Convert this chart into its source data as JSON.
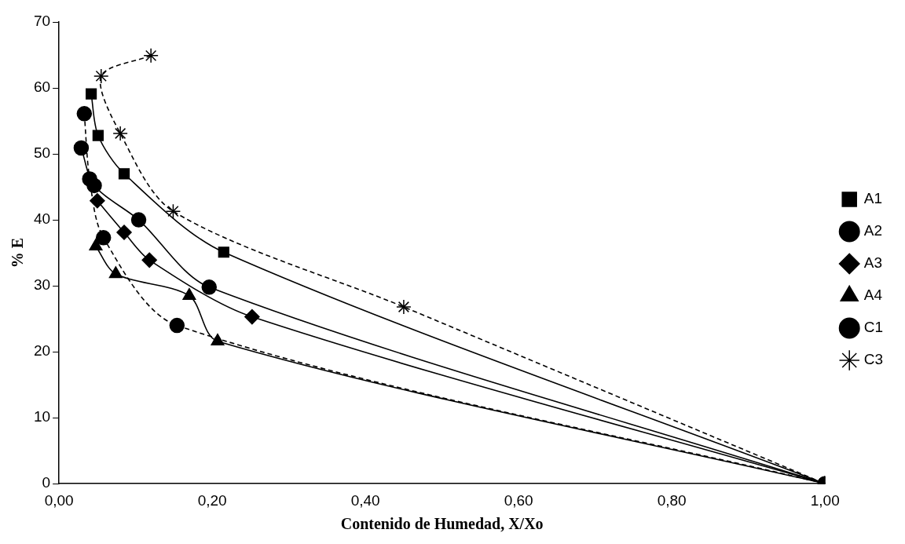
{
  "chart_data": {
    "type": "line",
    "xlabel": "Contenido de Humedad, X/Xo",
    "ylabel": "% E",
    "xlim": [
      0,
      1
    ],
    "ylim": [
      0,
      70
    ],
    "xticks": [
      {
        "value": 0,
        "label": "0,00"
      },
      {
        "value": 0.2,
        "label": "0,20"
      },
      {
        "value": 0.4,
        "label": "0,40"
      },
      {
        "value": 0.6,
        "label": "0,60"
      },
      {
        "value": 0.8,
        "label": "0,80"
      },
      {
        "value": 1,
        "label": "1,00"
      }
    ],
    "yticks": [
      0,
      10,
      20,
      30,
      40,
      50,
      60,
      70
    ],
    "grid": false,
    "legend": "right",
    "series": [
      {
        "name": "A1",
        "color": "#000000",
        "marker": "square",
        "line_style": "solid",
        "x": [
          0.042,
          0.051,
          0.085,
          0.215,
          1
        ],
        "values": [
          59.1,
          52.8,
          47.0,
          35.1,
          0
        ]
      },
      {
        "name": "A2",
        "color": "#000000",
        "marker": "circle",
        "line_style": "solid",
        "x": [
          0.029,
          0.046,
          0.104,
          0.196,
          1
        ],
        "values": [
          50.9,
          45.2,
          40.0,
          29.8,
          0
        ]
      },
      {
        "name": "A3",
        "color": "#000000",
        "marker": "diamond",
        "line_style": "solid",
        "x": [
          0.05,
          0.085,
          0.118,
          0.252,
          1
        ],
        "values": [
          42.9,
          38.1,
          33.9,
          25.3,
          0
        ]
      },
      {
        "name": "A4",
        "color": "#000000",
        "marker": "triangle",
        "line_style": "solid",
        "x": [
          0.048,
          0.074,
          0.17,
          0.207,
          1
        ],
        "values": [
          36.0,
          31.8,
          28.5,
          21.6,
          0
        ]
      },
      {
        "name": "C1",
        "color": "#000000",
        "marker": "circle",
        "line_style": "dashed",
        "x": [
          0.033,
          0.04,
          0.058,
          0.154,
          1
        ],
        "values": [
          56.1,
          46.2,
          37.3,
          24.0,
          0
        ]
      },
      {
        "name": "C3",
        "color": "#000000",
        "marker": "cross",
        "line_style": "dashed",
        "x": [
          0.12,
          0.055,
          0.08,
          0.149,
          0.45,
          1
        ],
        "values": [
          64.9,
          61.8,
          53.1,
          41.3,
          26.8,
          0
        ]
      }
    ]
  }
}
